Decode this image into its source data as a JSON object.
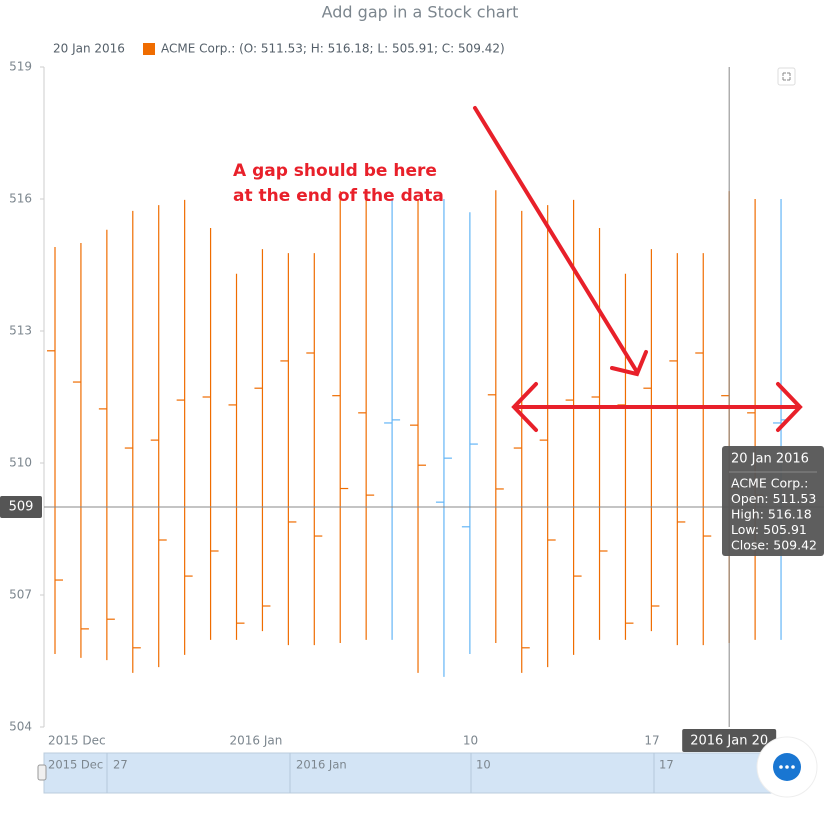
{
  "chart_data": {
    "type": "ohlc",
    "title": "Add gap in a Stock chart",
    "legend_date": "20 Jan 2016",
    "legend_text": "ACME Corp.: (O: 511.53; H: 516.18; L: 505.91; C: 509.42)",
    "annotation": [
      "A gap should be here",
      "at the end of the data"
    ],
    "x": [
      "2015-12-25",
      "2015-12-26",
      "2015-12-27",
      "2015-12-28",
      "2015-12-29",
      "2015-12-30",
      "2015-12-31",
      "2016-01-01",
      "2016-01-02",
      "2016-01-03",
      "2016-01-04",
      "2016-01-05",
      "2016-01-06",
      "2016-01-07",
      "2016-01-08",
      "2016-01-09",
      "2016-01-10",
      "2016-01-11",
      "2016-01-12",
      "2016-01-13",
      "2016-01-14",
      "2016-01-15",
      "2016-01-16",
      "2016-01-17",
      "2016-01-18",
      "2016-01-19",
      "2016-01-20",
      "2016-01-21",
      "2016-01-22"
    ],
    "series": [
      {
        "name": "ACME Corp.",
        "color": "#ef6c00",
        "rising_color": "#64b5f6",
        "falling_color": "#ef6c00",
        "open": [
          512.55,
          511.84,
          511.23,
          510.34,
          510.52,
          511.43,
          511.5,
          511.32,
          511.7,
          512.32,
          512.5,
          511.53,
          511.14,
          510.91,
          510.86,
          509.11,
          508.55,
          511.55,
          510.34,
          510.52,
          511.43,
          511.5,
          511.32,
          511.7,
          512.32,
          512.5,
          511.53,
          511.14,
          510.91
        ],
        "high": [
          514.91,
          515.0,
          515.3,
          515.73,
          515.86,
          515.98,
          515.34,
          514.3,
          514.86,
          514.77,
          514.77,
          516.18,
          516.0,
          516.0,
          516.0,
          516.0,
          515.7,
          516.2,
          515.73,
          515.86,
          515.98,
          515.34,
          514.3,
          514.86,
          514.77,
          514.77,
          516.18,
          516.0,
          516.0
        ],
        "low": [
          505.66,
          505.57,
          505.52,
          505.23,
          505.36,
          505.64,
          505.98,
          505.98,
          506.18,
          505.86,
          505.86,
          505.91,
          505.98,
          505.98,
          505.23,
          505.14,
          505.66,
          505.91,
          505.23,
          505.36,
          505.64,
          505.98,
          505.98,
          506.18,
          505.86,
          505.86,
          505.91,
          505.98,
          505.98
        ],
        "close": [
          507.34,
          506.23,
          506.45,
          505.8,
          508.25,
          507.43,
          508.0,
          506.36,
          506.75,
          508.66,
          508.34,
          509.42,
          509.27,
          510.98,
          509.95,
          510.11,
          510.43,
          509.41,
          505.8,
          508.25,
          507.43,
          508.0,
          506.36,
          506.75,
          508.66,
          508.34,
          509.42,
          509.27,
          510.98
        ]
      }
    ],
    "ylim": [
      504,
      519
    ],
    "yticks": [
      504,
      507,
      510,
      513,
      516,
      519
    ],
    "xticks": [
      {
        "value": "2015-12-25",
        "label": "2015 Dec"
      },
      {
        "value": "2016-01-01",
        "label": "2016 Jan"
      },
      {
        "value": "2016-01-10",
        "label": "10"
      },
      {
        "value": "2016-01-17",
        "label": "17"
      }
    ],
    "crosshair": {
      "x": "2016-01-20",
      "y": 509,
      "x_label": "2016 Jan 20"
    },
    "tooltip": {
      "title": "20 Jan 2016",
      "lines": [
        "ACME Corp.:",
        "Open: 511.53",
        "High: 516.18",
        "Low: 505.91",
        "Close: 509.42"
      ]
    },
    "scroller_labels": [
      "2015 Dec",
      "27",
      "2016 Jan",
      "10",
      "17"
    ]
  }
}
